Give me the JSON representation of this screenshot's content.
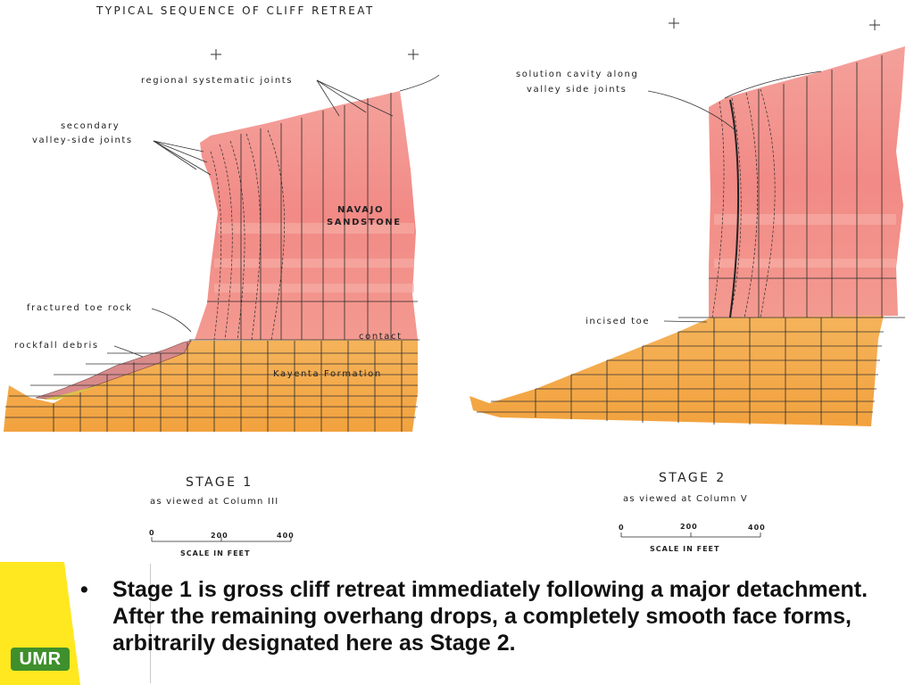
{
  "figure": {
    "title": "TYPICAL SEQUENCE OF CLIFF RETREAT",
    "stage1": {
      "labels": {
        "regional_joints": "regional systematic joints",
        "secondary_1": "secondary",
        "secondary_2": "valley-side joints",
        "navajo_1": "NAVAJO",
        "navajo_2": "SANDSTONE",
        "fractured_toe": "fractured toe rock",
        "rockfall": "rockfall debris",
        "contact": "contact",
        "kayenta": "Kayenta Formation"
      },
      "stage_title": "STAGE 1",
      "viewed": "as viewed at Column III",
      "scale": {
        "ticks": [
          "0",
          "200",
          "400"
        ],
        "label": "SCALE IN FEET"
      }
    },
    "stage2": {
      "labels": {
        "solution_1": "solution cavity along",
        "solution_2": "valley side joints",
        "incised_toe": "incised toe"
      },
      "stage_title": "STAGE 2",
      "viewed": "as viewed at Column V",
      "scale": {
        "ticks": [
          "0",
          "200",
          "400"
        ],
        "label": "SCALE IN FEET"
      }
    },
    "colors": {
      "sandstone": "#f3908c",
      "sandstone_light": "#f8b4ac",
      "kayenta": "#f2a94a",
      "kayenta_light": "#f7c27a",
      "debris": "#d98b8b",
      "debris_yellow": "#d9c34a"
    }
  },
  "footer": {
    "logo": "UMR",
    "logo_colors": {
      "band": "#ffe81f",
      "badge": "#3f8f2c"
    },
    "bullets": [
      "Stage 1 is gross cliff retreat immediately following a major detachment.  After the remaining overhang drops, a completely smooth face forms, arbitrarily designated here as Stage 2."
    ]
  }
}
